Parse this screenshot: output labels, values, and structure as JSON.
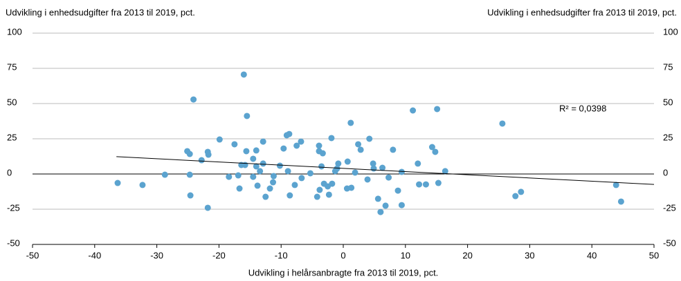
{
  "chart_data": {
    "type": "scatter",
    "title": "Udvikling i enhedsudgifter fra 2013 til 2019, pct.",
    "y2_title": "Udvikling i enhedsudgifter fra 2013 til 2019, pct.",
    "x_label": "Udvikling i helårsanbragte fra 2013 til 2019, pct.",
    "annotation": "R² = 0,0398",
    "color": "#5ba3cf",
    "grid": true,
    "xlim": [
      -50,
      50
    ],
    "xticks": [
      -50,
      -40,
      -30,
      -20,
      -10,
      0,
      10,
      20,
      30,
      40,
      50
    ],
    "ylim": [
      -50,
      100
    ],
    "yticks": [
      -50,
      -25,
      0,
      25,
      50,
      75,
      100
    ],
    "y2lim": [
      -50,
      100
    ],
    "y2ticks": [
      -50,
      -25,
      0,
      25,
      50,
      75,
      100
    ],
    "trendline": {
      "x": [
        -36.5,
        50
      ],
      "y": [
        12.3,
        -7.4
      ]
    },
    "x": [
      -36.3,
      -32.3,
      -28.7,
      -25.1,
      -24.7,
      -24.7,
      -24.6,
      -24.1,
      -22.8,
      -21.8,
      -21.7,
      -21.8,
      -19.9,
      -18.4,
      -17.5,
      -16.9,
      -16.7,
      -16.4,
      -16.0,
      -15.8,
      -15.6,
      -15.5,
      -14.5,
      -14.0,
      -14.5,
      -14.0,
      -13.8,
      -13.4,
      -12.9,
      -12.9,
      -12.5,
      -11.8,
      -11.3,
      -11.2,
      -10.2,
      -9.6,
      -9.1,
      -8.7,
      -8.9,
      -8.6,
      -7.8,
      -7.5,
      -6.8,
      -6.7,
      -5.3,
      -4.2,
      -3.9,
      -3.9,
      -3.8,
      -3.5,
      -3.3,
      -3.1,
      -2.5,
      -2.3,
      -1.9,
      -1.8,
      -1.3,
      -1.0,
      -0.8,
      0.6,
      0.7,
      1.2,
      1.3,
      1.9,
      2.4,
      2.8,
      3.9,
      4.2,
      4.8,
      4.9,
      5.6,
      6.0,
      6.3,
      6.8,
      7.3,
      8.0,
      8.8,
      9.4,
      9.4,
      11.2,
      12.0,
      12.2,
      13.3,
      14.3,
      14.8,
      15.1,
      15.3,
      16.4,
      25.6,
      27.7,
      28.6,
      43.9,
      44.7
    ],
    "values": [
      -6.4,
      -7.8,
      -0.5,
      16.2,
      14.2,
      -0.5,
      -15.2,
      52.9,
      9.8,
      15.7,
      13.7,
      -24.0,
      24.5,
      -2.0,
      21.1,
      -1.0,
      -10.3,
      6.4,
      70.6,
      6.4,
      16.2,
      41.2,
      10.8,
      16.7,
      -2.0,
      5.4,
      -8.3,
      2.0,
      23.0,
      7.4,
      -16.2,
      -10.3,
      -5.9,
      -1.5,
      5.9,
      18.1,
      27.5,
      28.4,
      2.0,
      -15.2,
      -7.8,
      20.1,
      23.0,
      -2.9,
      0.5,
      -16.2,
      16.2,
      20.1,
      -11.3,
      5.4,
      14.7,
      -6.9,
      -8.8,
      -14.7,
      25.5,
      -6.9,
      2.0,
      3.9,
      7.4,
      -10.3,
      8.8,
      36.3,
      -9.8,
      1.0,
      21.1,
      17.2,
      -3.9,
      25.0,
      7.4,
      3.9,
      -17.6,
      -27.0,
      4.4,
      -22.5,
      -2.5,
      17.2,
      -11.8,
      1.5,
      -22.1,
      45.1,
      7.4,
      -7.4,
      -7.4,
      19.1,
      15.7,
      46.1,
      -6.4,
      2.0,
      35.8,
      -15.7,
      -12.7,
      -7.8,
      -19.6
    ]
  }
}
